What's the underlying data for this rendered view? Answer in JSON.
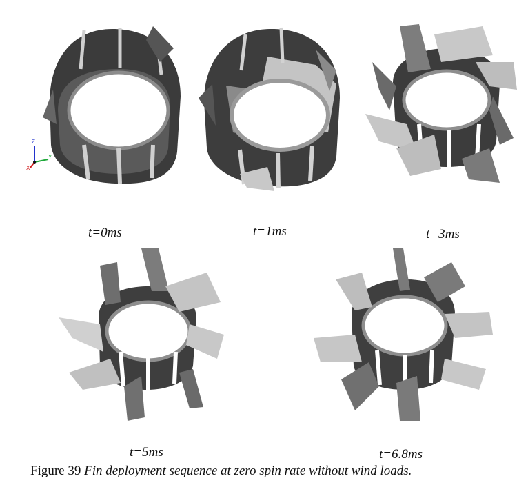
{
  "figure": {
    "panels": [
      {
        "id": "p0",
        "time_label": "t=0ms",
        "stage": "stowed"
      },
      {
        "id": "p1",
        "time_label": "t=1ms",
        "stage": "partly-open"
      },
      {
        "id": "p3",
        "time_label": "t=3ms",
        "stage": "deploying"
      },
      {
        "id": "p5",
        "time_label": "t=5ms",
        "stage": "deployed"
      },
      {
        "id": "p6",
        "time_label": "t=6.8ms",
        "stage": "fully-deployed"
      }
    ],
    "axis_triad": {
      "z": "Z",
      "y": "Y",
      "x": "X"
    },
    "colors": {
      "dark": "#3b3b3b",
      "mid": "#7e7e7e",
      "light": "#c9c9c9",
      "x_axis": "#d11f1f",
      "y_axis": "#1ea83a",
      "z_axis": "#2233cc"
    }
  },
  "caption": {
    "number": "Figure 39",
    "text": "Fin deployment sequence at zero spin rate without wind loads."
  }
}
